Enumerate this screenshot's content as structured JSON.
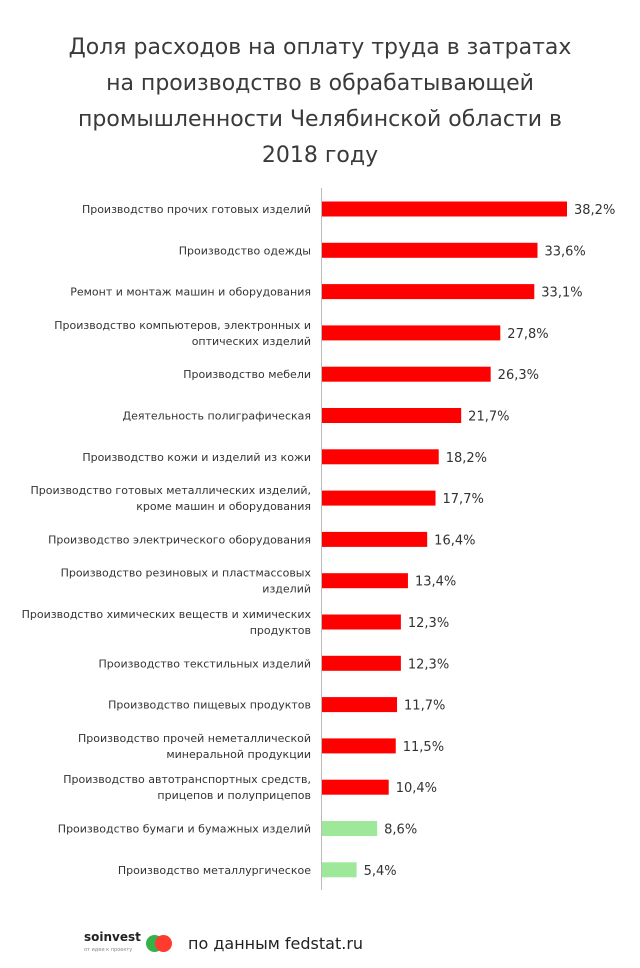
{
  "chart_data": {
    "type": "bar",
    "orientation": "horizontal",
    "title": "Доля расходов на оплату труда в затратах на производство в обрабатывающей промышленности Челябинской области в 2018 году",
    "title_lines": [
      "Доля расходов на оплату труда в затратах",
      "на производство в обрабатывающей",
      "промышленности Челябинской области в",
      "2018 году"
    ],
    "categories": [
      [
        "Производство прочих готовых изделий"
      ],
      [
        "Производство одежды"
      ],
      [
        "Ремонт и монтаж машин и оборудования"
      ],
      [
        "Производство компьютеров, электронных и",
        "оптических изделий"
      ],
      [
        "Производство мебели"
      ],
      [
        "Деятельность полиграфическая"
      ],
      [
        "Производство кожи и изделий из кожи"
      ],
      [
        "Производство готовых металлических изделий,",
        "кроме машин и оборудования"
      ],
      [
        "Производство электрического оборудования"
      ],
      [
        "Производство резиновых и пластмассовых",
        "изделий"
      ],
      [
        "Производство химических веществ и химических",
        "продуктов"
      ],
      [
        "Производство текстильных изделий"
      ],
      [
        "Производство пищевых продуктов"
      ],
      [
        "Производство прочей неметаллической",
        "минеральной продукции"
      ],
      [
        "Производство автотранспортных средств,",
        "прицепов и полуприцепов"
      ],
      [
        "Производство бумаги и бумажных изделий"
      ],
      [
        "Производство металлургическое"
      ]
    ],
    "values": [
      38.2,
      33.6,
      33.1,
      27.8,
      26.3,
      21.7,
      18.2,
      17.7,
      16.4,
      13.4,
      12.3,
      12.3,
      11.7,
      11.5,
      10.4,
      8.6,
      5.4
    ],
    "value_labels": [
      "38,2%",
      "33,6%",
      "33,1%",
      "27,8%",
      "26,3%",
      "21,7%",
      "18,2%",
      "17,7%",
      "16,4%",
      "13,4%",
      "12,3%",
      "12,3%",
      "11,7%",
      "11,5%",
      "10,4%",
      "8,6%",
      "5,4%"
    ],
    "bar_colors": [
      "#ff0000",
      "#ff0000",
      "#ff0000",
      "#ff0000",
      "#ff0000",
      "#ff0000",
      "#ff0000",
      "#ff0000",
      "#ff0000",
      "#ff0000",
      "#ff0000",
      "#ff0000",
      "#ff0000",
      "#ff0000",
      "#ff0000",
      "#9ee89a",
      "#9ee89a"
    ],
    "xlim": [
      0,
      40
    ],
    "grid": false
  },
  "footer": {
    "brand_name": "soinvest",
    "brand_tagline": "от идеи к проекту",
    "source": "по данным fedstat.ru"
  },
  "colors": {
    "bar_primary": "#ff0000",
    "bar_secondary": "#9ee89a",
    "axis": "#bbbbbb",
    "logo_green": "#35b34a",
    "logo_red": "#ff3b30"
  }
}
